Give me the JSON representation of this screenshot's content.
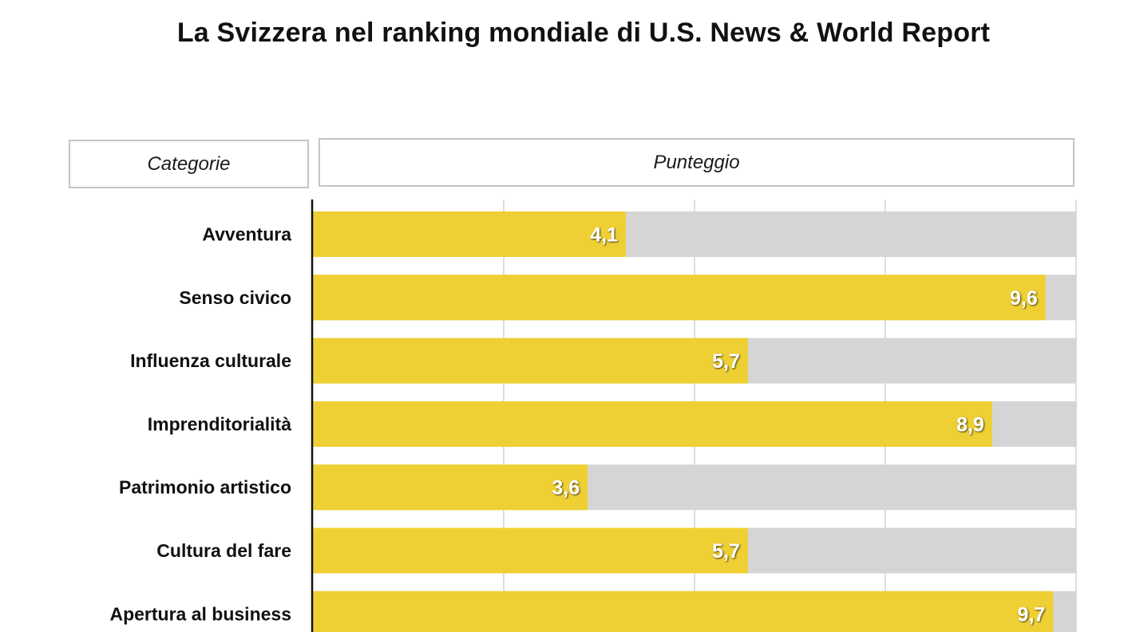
{
  "chart_data": {
    "type": "bar",
    "orientation": "horizontal",
    "title": "La Svizzera nel ranking mondiale di U.S. News & World Report",
    "category_header": "Categorie",
    "value_header": "Punteggio",
    "categories": [
      "Avventura",
      "Senso civico",
      "Influenza culturale",
      "Imprenditorialità",
      "Patrimonio artistico",
      "Cultura del fare",
      "Apertura al business"
    ],
    "values": [
      4.1,
      9.6,
      5.7,
      8.9,
      3.6,
      5.7,
      9.7
    ],
    "value_labels": [
      "4,1",
      "9,6",
      "5,7",
      "8,9",
      "3,6",
      "5,7",
      "9,7"
    ],
    "xlim": [
      0,
      10
    ],
    "grid": true,
    "colors": {
      "bar": "#efd034",
      "track": "#d5d5d5",
      "grid": "#c8c8c8",
      "axis": "#111111"
    }
  }
}
